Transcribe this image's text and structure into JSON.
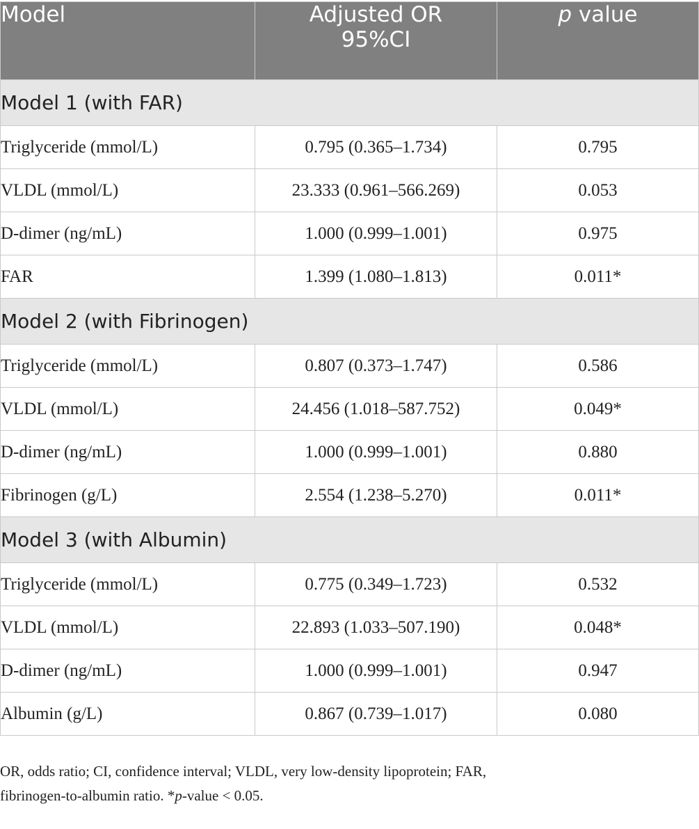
{
  "header": {
    "model": "Model",
    "or_line1": "Adjusted OR",
    "or_line2": "95%CI",
    "p_italic": "p",
    "p_rest": " value"
  },
  "sections": [
    {
      "title": "Model 1 (with FAR)",
      "rows": [
        {
          "variable": "Triglyceride (mmol/L)",
          "or_ci": "0.795 (0.365–1.734)",
          "p": "0.795"
        },
        {
          "variable": "VLDL (mmol/L)",
          "or_ci": "23.333 (0.961–566.269)",
          "p": "0.053"
        },
        {
          "variable": "D-dimer (ng/mL)",
          "or_ci": "1.000 (0.999–1.001)",
          "p": "0.975"
        },
        {
          "variable": "FAR",
          "or_ci": "1.399 (1.080–1.813)",
          "p": "0.011*"
        }
      ]
    },
    {
      "title": "Model 2 (with Fibrinogen)",
      "rows": [
        {
          "variable": "Triglyceride (mmol/L)",
          "or_ci": "0.807 (0.373–1.747)",
          "p": "0.586"
        },
        {
          "variable": "VLDL (mmol/L)",
          "or_ci": "24.456 (1.018–587.752)",
          "p": "0.049*"
        },
        {
          "variable": "D-dimer (ng/mL)",
          "or_ci": "1.000 (0.999–1.001)",
          "p": "0.880"
        },
        {
          "variable": "Fibrinogen (g/L)",
          "or_ci": "2.554 (1.238–5.270)",
          "p": "0.011*"
        }
      ]
    },
    {
      "title": "Model 3 (with Albumin)",
      "rows": [
        {
          "variable": "Triglyceride (mmol/L)",
          "or_ci": "0.775 (0.349–1.723)",
          "p": "0.532"
        },
        {
          "variable": "VLDL (mmol/L)",
          "or_ci": "22.893 (1.033–507.190)",
          "p": "0.048*"
        },
        {
          "variable": "D-dimer (ng/mL)",
          "or_ci": "1.000 (0.999–1.001)",
          "p": "0.947"
        },
        {
          "variable": "Albumin (g/L)",
          "or_ci": "0.867 (0.739–1.017)",
          "p": "0.080"
        }
      ]
    }
  ],
  "footnote": {
    "line1": "OR, odds ratio; CI, confidence interval; VLDL, very low-density lipoprotein; FAR,",
    "line2_prefix": "fibrinogen-to-albumin ratio. *",
    "line2_italic": "p",
    "line2_suffix": "-value < 0.05."
  }
}
